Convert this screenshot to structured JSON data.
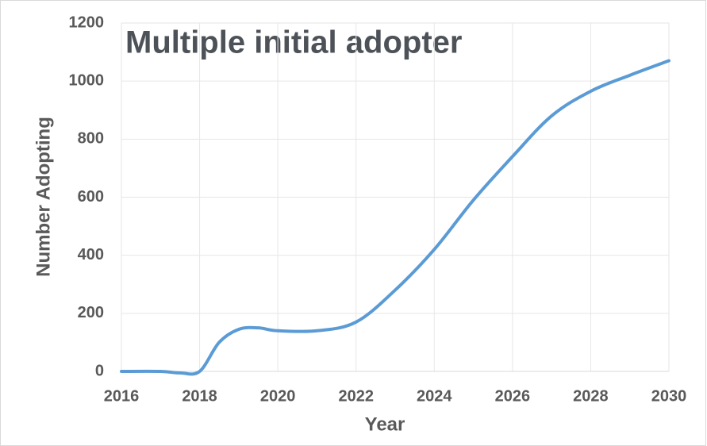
{
  "chart_data": {
    "type": "line",
    "title": "Multiple initial adopter",
    "x_label": "Year",
    "y_label": "Number Adopting",
    "x": [
      2016,
      2017,
      2017.5,
      2018,
      2018.5,
      2019,
      2019.5,
      2020,
      2021,
      2022,
      2023,
      2024,
      2025,
      2026,
      2027,
      2028,
      2029,
      2030
    ],
    "series": [
      {
        "name": "Number Adopting",
        "color": "#5b9bd5",
        "values": [
          0,
          0,
          -5,
          0,
          100,
          145,
          150,
          140,
          140,
          170,
          280,
          420,
          590,
          740,
          880,
          965,
          1020,
          1070
        ]
      }
    ],
    "xlim": [
      2016,
      2030
    ],
    "xticks": [
      2016,
      2018,
      2020,
      2022,
      2024,
      2026,
      2028,
      2030
    ],
    "ylim": [
      0,
      1200
    ],
    "yticks": [
      0,
      200,
      400,
      600,
      800,
      1000,
      1200
    ],
    "grid": true
  }
}
